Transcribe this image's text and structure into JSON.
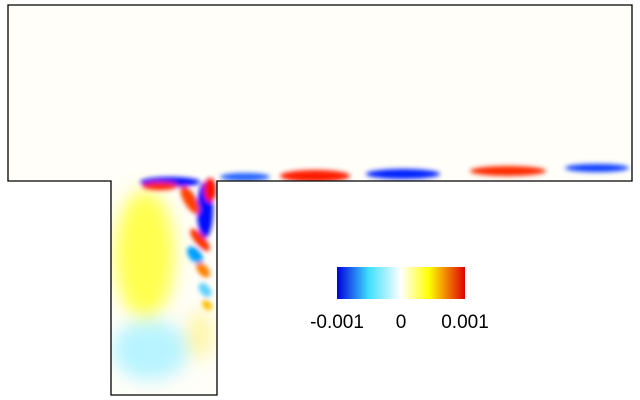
{
  "chart_data": {
    "type": "contour",
    "colorbar": {
      "lim": [
        -0.001,
        0.001
      ],
      "ticks": [
        -0.001,
        0,
        0.001
      ]
    }
  }
}
